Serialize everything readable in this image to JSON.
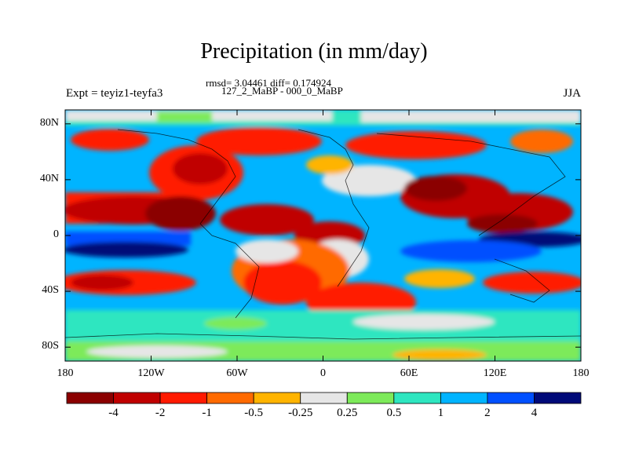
{
  "title": "Precipitation (in mm/day)",
  "stats": "rmsd= 3.04461 diff= 0.174924",
  "subtitle": "127_2_MaBP - 000_0_MaBP",
  "left_label": "Expt = teyiz1-teyfa3",
  "right_label": "JJA",
  "map": {
    "projection": "cylindrical equidistant",
    "lon_range": [
      -180,
      180
    ],
    "lat_range": [
      -90,
      90
    ],
    "y_ticks": [
      {
        "value": 80,
        "label": "80N"
      },
      {
        "value": 40,
        "label": "40N"
      },
      {
        "value": 0,
        "label": "0"
      },
      {
        "value": -40,
        "label": "40S"
      },
      {
        "value": -80,
        "label": "80S"
      }
    ],
    "x_ticks": [
      {
        "value": -180,
        "label": "180"
      },
      {
        "value": -120,
        "label": "120W"
      },
      {
        "value": -60,
        "label": "60W"
      },
      {
        "value": 0,
        "label": "0"
      },
      {
        "value": 60,
        "label": "60E"
      },
      {
        "value": 120,
        "label": "120E"
      },
      {
        "value": 180,
        "label": "180"
      }
    ]
  },
  "colorbar": {
    "colors": [
      "#8b0000",
      "#c00000",
      "#ff1a00",
      "#ff6a00",
      "#ffb400",
      "#e6e6e6",
      "#7dea5a",
      "#2ee6c0",
      "#00b4ff",
      "#0050ff",
      "#000a78"
    ],
    "labels": [
      "-4",
      "-2",
      "-1",
      "-0.5",
      "-0.25",
      "0.25",
      "0.5",
      "1",
      "2",
      "4"
    ]
  }
}
